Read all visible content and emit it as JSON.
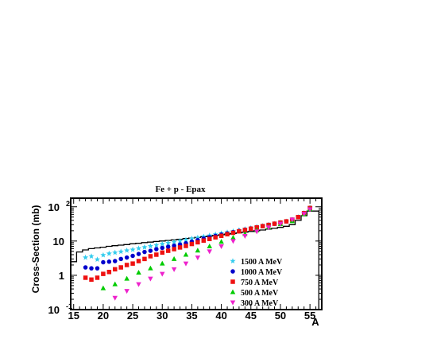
{
  "chart_data": {
    "type": "scatter",
    "title": "Fe + p -  Epax",
    "xlabel": "A",
    "ylabel": "Cross-Section (mb)",
    "xlim": [
      14.5,
      57
    ],
    "ylim_log10": [
      -1,
      2.25
    ],
    "y_scale": "log",
    "x_ticks": [
      15,
      20,
      25,
      30,
      35,
      40,
      45,
      50,
      55
    ],
    "y_ticks": [
      {
        "value": 0.1,
        "label_base": "10",
        "label_exp": "-1"
      },
      {
        "value": 1,
        "label_base": "1",
        "label_exp": ""
      },
      {
        "value": 10,
        "label_base": "10",
        "label_exp": ""
      },
      {
        "value": 100,
        "label_base": "10",
        "label_exp": "2"
      }
    ],
    "histogram": {
      "name": "",
      "color": "#000000",
      "x": [
        15,
        16,
        17,
        18,
        19,
        20,
        21,
        22,
        23,
        24,
        25,
        26,
        27,
        28,
        29,
        30,
        31,
        32,
        33,
        34,
        35,
        36,
        37,
        38,
        39,
        40,
        41,
        42,
        43,
        44,
        45,
        46,
        47,
        48,
        49,
        50,
        51,
        52,
        53,
        54,
        55,
        56
      ],
      "values": [
        2.5,
        4.8,
        5.5,
        6.0,
        6.3,
        6.6,
        7.0,
        7.3,
        7.6,
        7.9,
        8.3,
        8.6,
        9.0,
        9.3,
        9.7,
        10.0,
        10.4,
        10.8,
        11.3,
        11.8,
        12.3,
        12.8,
        13.4,
        14.0,
        14.6,
        15.2,
        15.9,
        16.6,
        17.3,
        18.1,
        19.0,
        20.0,
        21.0,
        22.2,
        23.5,
        25.0,
        27.0,
        30.0,
        40.0,
        55.0,
        75.0,
        75.0
      ]
    },
    "series": [
      {
        "name": "1500 A MeV",
        "color": "#33ccee",
        "marker": "star",
        "x": [
          17,
          18,
          19,
          20,
          21,
          22,
          23,
          24,
          25,
          26,
          27,
          28,
          29,
          30,
          31,
          32,
          33,
          34,
          35,
          36,
          37,
          38,
          39,
          40,
          41,
          42,
          43,
          44,
          45,
          46,
          47,
          48,
          49,
          50,
          51,
          52,
          53,
          54,
          55
        ],
        "values": [
          3.3,
          3.6,
          2.9,
          3.9,
          4.3,
          4.6,
          4.9,
          5.3,
          5.6,
          6.1,
          6.6,
          7.1,
          7.6,
          8.2,
          8.8,
          9.4,
          10.1,
          10.9,
          11.8,
          12.6,
          13.5,
          14.5,
          15.6,
          16.8,
          18.0,
          19.3,
          20.8,
          22.3,
          24.0,
          25.7,
          27.6,
          29.6,
          31.8,
          34.2,
          37.0,
          42.0,
          50.0,
          66.0,
          95.0
        ]
      },
      {
        "name": "1000 A MeV",
        "color": "#0000cc",
        "marker": "circle",
        "x": [
          17,
          18,
          19,
          20,
          21,
          22,
          23,
          24,
          25,
          26,
          27,
          28,
          29,
          30,
          31,
          32,
          33,
          34,
          35,
          36,
          37,
          38,
          39,
          40,
          41,
          42,
          43,
          44,
          45,
          46,
          47,
          48,
          49,
          50,
          51,
          52,
          53,
          54,
          55
        ],
        "values": [
          1.7,
          1.6,
          1.6,
          2.4,
          2.5,
          2.6,
          3.0,
          3.3,
          3.7,
          4.2,
          4.8,
          5.2,
          5.8,
          6.3,
          6.8,
          7.3,
          7.9,
          8.6,
          9.6,
          10.7,
          11.8,
          12.9,
          14.1,
          15.4,
          16.7,
          18.2,
          19.8,
          21.5,
          23.3,
          25.3,
          27.4,
          29.6,
          32.0,
          34.6,
          37.5,
          42.0,
          50.0,
          65.0,
          92.0
        ]
      },
      {
        "name": "750 A MeV",
        "color": "#ee1111",
        "marker": "square",
        "x": [
          17,
          18,
          19,
          20,
          21,
          22,
          23,
          24,
          25,
          26,
          27,
          28,
          29,
          30,
          31,
          32,
          33,
          34,
          35,
          36,
          37,
          38,
          39,
          40,
          41,
          42,
          43,
          44,
          45,
          46,
          47,
          48,
          49,
          50,
          51,
          52,
          53,
          54,
          55
        ],
        "values": [
          0.85,
          0.75,
          0.85,
          1.1,
          1.25,
          1.5,
          1.7,
          2.0,
          2.2,
          2.6,
          3.0,
          3.6,
          4.0,
          4.6,
          5.2,
          5.8,
          6.5,
          7.2,
          8.2,
          9.2,
          10.3,
          11.5,
          12.8,
          14.2,
          15.8,
          17.4,
          19.2,
          21.0,
          23.0,
          25.0,
          27.2,
          29.5,
          32.0,
          34.6,
          37.5,
          42.0,
          50.0,
          65.0,
          92.0
        ]
      },
      {
        "name": "500 A MeV",
        "color": "#00cc00",
        "marker": "triangle",
        "x": [
          20,
          22,
          24,
          26,
          28,
          30,
          32,
          34,
          36,
          38,
          40,
          42,
          44,
          46,
          48,
          50,
          52,
          54,
          55
        ],
        "values": [
          0.42,
          0.55,
          0.8,
          1.2,
          1.6,
          2.2,
          3.0,
          4.0,
          5.3,
          7.0,
          9.5,
          12.5,
          16.0,
          20.5,
          25.5,
          31.0,
          38.0,
          60.0,
          85.0
        ]
      },
      {
        "name": "300 A MeV",
        "color": "#ee22cc",
        "marker": "triangle-down",
        "x": [
          22,
          24,
          26,
          28,
          30,
          32,
          34,
          36,
          38,
          40,
          42,
          44,
          46,
          48,
          50,
          52,
          54,
          55
        ],
        "values": [
          0.22,
          0.35,
          0.55,
          0.8,
          1.1,
          1.5,
          2.2,
          3.3,
          5.0,
          7.0,
          10.0,
          14.0,
          19.0,
          25.0,
          32.0,
          42.0,
          62.0,
          84.0
        ]
      }
    ]
  }
}
